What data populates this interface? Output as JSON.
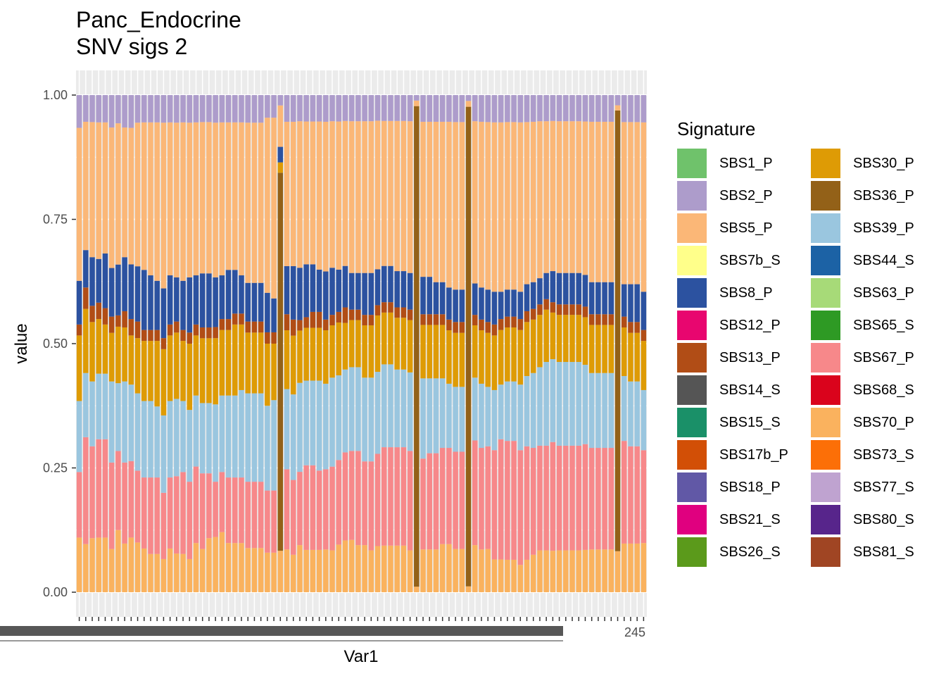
{
  "chart_data": {
    "type": "bar",
    "stacked": true,
    "title": "Panc_Endocrine",
    "subtitle": "SNV sigs 2",
    "xlabel": "Var1",
    "ylabel": "value",
    "ylim": [
      0,
      1
    ],
    "yticks": [
      "0.00",
      "0.25",
      "0.50",
      "0.75",
      "1.00"
    ],
    "xticks_visible_text": "245",
    "n_bars": 88,
    "grid": true,
    "background": "#EBEBEB",
    "legend_position": "right",
    "legend_title": "Signature",
    "signatures": [
      {
        "name": "SBS1_P",
        "color": "#6FC26B"
      },
      {
        "name": "SBS2_P",
        "color": "#AD9CCB"
      },
      {
        "name": "SBS5_P",
        "color": "#FBB777"
      },
      {
        "name": "SBS7b_S",
        "color": "#FFFF8A"
      },
      {
        "name": "SBS8_P",
        "color": "#2C52A0"
      },
      {
        "name": "SBS12_P",
        "color": "#E8066F"
      },
      {
        "name": "SBS13_P",
        "color": "#B14D16"
      },
      {
        "name": "SBS14_S",
        "color": "#555555"
      },
      {
        "name": "SBS15_S",
        "color": "#1A9068"
      },
      {
        "name": "SBS17b_P",
        "color": "#D24F06"
      },
      {
        "name": "SBS18_P",
        "color": "#6158A6"
      },
      {
        "name": "SBS21_S",
        "color": "#E0007F"
      },
      {
        "name": "SBS26_S",
        "color": "#5B9A1B"
      },
      {
        "name": "SBS30_P",
        "color": "#DE9B05"
      },
      {
        "name": "SBS36_P",
        "color": "#936118"
      },
      {
        "name": "SBS39_P",
        "color": "#9AC6DF"
      },
      {
        "name": "SBS44_S",
        "color": "#1C62A5"
      },
      {
        "name": "SBS63_P",
        "color": "#A7DA78"
      },
      {
        "name": "SBS65_S",
        "color": "#2E9A24"
      },
      {
        "name": "SBS67_P",
        "color": "#F7888A"
      },
      {
        "name": "SBS68_S",
        "color": "#DA031C"
      },
      {
        "name": "SBS70_P",
        "color": "#FAB25E"
      },
      {
        "name": "SBS73_S",
        "color": "#FC6F07"
      },
      {
        "name": "SBS77_S",
        "color": "#BFA3D0"
      },
      {
        "name": "SBS80_S",
        "color": "#57258B"
      },
      {
        "name": "SBS81_S",
        "color": "#A04523"
      }
    ],
    "series": [
      {
        "name": "SBS70_P",
        "values": [
          0.1,
          0.09,
          0.1,
          0.1,
          0.1,
          0.08,
          0.11,
          0.09,
          0.1,
          0.09,
          0.08,
          0.07,
          0.07,
          0.06,
          0.08,
          0.07,
          0.07,
          0.06,
          0.09,
          0.08,
          0.1,
          0.1,
          0.11,
          0.09,
          0.09,
          0.09,
          0.08,
          0.08,
          0.08,
          0.07,
          0.07,
          0.08,
          0.08,
          0.07,
          0.09,
          0.08,
          0.08,
          0.08,
          0.08,
          0.08,
          0.09,
          0.1,
          0.1,
          0.09,
          0.09,
          0.08,
          0.09,
          0.09,
          0.09,
          0.09,
          0.09,
          0.08,
          0.01,
          0.08,
          0.08,
          0.08,
          0.09,
          0.09,
          0.08,
          0.08,
          0.01,
          0.09,
          0.08,
          0.08,
          0.06,
          0.06,
          0.06,
          0.06,
          0.05,
          0.06,
          0.07,
          0.08,
          0.08,
          0.08,
          0.08,
          0.08,
          0.08,
          0.08,
          0.08,
          0.08,
          0.08,
          0.08,
          0.08,
          0.08,
          0.09,
          0.09,
          0.09,
          0.09
        ]
      },
      {
        "name": "SBS36_P",
        "values": [
          0,
          0,
          0,
          0,
          0,
          0,
          0,
          0,
          0,
          0,
          0,
          0,
          0,
          0,
          0,
          0,
          0,
          0,
          0,
          0,
          0,
          0,
          0,
          0,
          0,
          0,
          0,
          0,
          0,
          0,
          0,
          0.73,
          0,
          0,
          0,
          0,
          0,
          0,
          0,
          0,
          0,
          0,
          0,
          0,
          0,
          0,
          0,
          0,
          0,
          0,
          0,
          0,
          0.87,
          0,
          0,
          0,
          0,
          0,
          0,
          0,
          0.82,
          0,
          0,
          0,
          0,
          0,
          0,
          0,
          0,
          0,
          0,
          0,
          0,
          0,
          0,
          0,
          0,
          0,
          0,
          0,
          0,
          0,
          0,
          0.86,
          0,
          0,
          0,
          0
        ]
      },
      {
        "name": "SBS67_P",
        "values": [
          0.12,
          0.2,
          0.17,
          0.18,
          0.18,
          0.16,
          0.14,
          0.15,
          0.14,
          0.13,
          0.13,
          0.14,
          0.14,
          0.12,
          0.13,
          0.14,
          0.15,
          0.14,
          0.14,
          0.14,
          0.12,
          0.1,
          0.11,
          0.12,
          0.12,
          0.12,
          0.12,
          0.12,
          0.12,
          0.11,
          0.11,
          0.0,
          0.15,
          0.14,
          0.14,
          0.16,
          0.16,
          0.15,
          0.15,
          0.16,
          0.16,
          0.17,
          0.17,
          0.18,
          0.16,
          0.17,
          0.18,
          0.19,
          0.19,
          0.19,
          0.19,
          0.19,
          0.0,
          0.17,
          0.18,
          0.18,
          0.18,
          0.18,
          0.18,
          0.18,
          0.0,
          0.2,
          0.19,
          0.19,
          0.2,
          0.22,
          0.22,
          0.22,
          0.21,
          0.21,
          0.2,
          0.2,
          0.2,
          0.21,
          0.2,
          0.2,
          0.2,
          0.2,
          0.2,
          0.19,
          0.19,
          0.19,
          0.19,
          0.0,
          0.19,
          0.18,
          0.18,
          0.17
        ]
      },
      {
        "name": "SBS39_P",
        "values": [
          0.13,
          0.12,
          0.12,
          0.12,
          0.12,
          0.15,
          0.12,
          0.15,
          0.14,
          0.14,
          0.14,
          0.14,
          0.13,
          0.14,
          0.14,
          0.14,
          0.13,
          0.13,
          0.13,
          0.13,
          0.13,
          0.14,
          0.14,
          0.15,
          0.15,
          0.16,
          0.16,
          0.16,
          0.16,
          0.15,
          0.16,
          0.0,
          0.15,
          0.16,
          0.17,
          0.16,
          0.16,
          0.17,
          0.16,
          0.17,
          0.16,
          0.16,
          0.16,
          0.16,
          0.16,
          0.16,
          0.16,
          0.16,
          0.16,
          0.15,
          0.15,
          0.15,
          0.0,
          0.15,
          0.14,
          0.14,
          0.13,
          0.12,
          0.12,
          0.12,
          0.0,
          0.12,
          0.12,
          0.11,
          0.11,
          0.1,
          0.11,
          0.11,
          0.12,
          0.13,
          0.14,
          0.15,
          0.16,
          0.16,
          0.16,
          0.16,
          0.16,
          0.16,
          0.15,
          0.14,
          0.14,
          0.14,
          0.14,
          0.0,
          0.12,
          0.12,
          0.12,
          0.11
        ]
      },
      {
        "name": "SBS30_P",
        "values": [
          0.12,
          0.12,
          0.11,
          0.1,
          0.09,
          0.09,
          0.1,
          0.1,
          0.09,
          0.1,
          0.11,
          0.11,
          0.12,
          0.12,
          0.12,
          0.12,
          0.11,
          0.12,
          0.11,
          0.12,
          0.12,
          0.12,
          0.12,
          0.12,
          0.13,
          0.12,
          0.11,
          0.11,
          0.11,
          0.11,
          0.1,
          0.02,
          0.11,
          0.11,
          0.1,
          0.1,
          0.1,
          0.1,
          0.1,
          0.1,
          0.1,
          0.09,
          0.09,
          0.09,
          0.1,
          0.1,
          0.11,
          0.1,
          0.1,
          0.1,
          0.1,
          0.1,
          0.0,
          0.1,
          0.1,
          0.1,
          0.1,
          0.1,
          0.1,
          0.1,
          0.0,
          0.1,
          0.1,
          0.1,
          0.1,
          0.1,
          0.1,
          0.1,
          0.1,
          0.1,
          0.1,
          0.1,
          0.1,
          0.09,
          0.09,
          0.09,
          0.09,
          0.09,
          0.09,
          0.09,
          0.09,
          0.09,
          0.09,
          0.0,
          0.09,
          0.09,
          0.09,
          0.09
        ]
      },
      {
        "name": "SBS13_P",
        "values": [
          0.02,
          0.04,
          0.03,
          0.03,
          0.03,
          0.03,
          0.02,
          0.03,
          0.03,
          0.03,
          0.02,
          0.02,
          0.02,
          0.02,
          0.02,
          0.02,
          0.02,
          0.02,
          0.02,
          0.02,
          0.02,
          0.02,
          0.02,
          0.02,
          0.02,
          0.02,
          0.02,
          0.02,
          0.02,
          0.02,
          0.02,
          0.0,
          0.03,
          0.03,
          0.02,
          0.02,
          0.03,
          0.03,
          0.02,
          0.02,
          0.02,
          0.03,
          0.02,
          0.02,
          0.02,
          0.02,
          0.02,
          0.02,
          0.02,
          0.02,
          0.02,
          0.02,
          0.0,
          0.02,
          0.02,
          0.02,
          0.02,
          0.02,
          0.02,
          0.02,
          0.0,
          0.02,
          0.02,
          0.02,
          0.02,
          0.02,
          0.02,
          0.02,
          0.02,
          0.02,
          0.02,
          0.02,
          0.02,
          0.02,
          0.02,
          0.02,
          0.02,
          0.02,
          0.02,
          0.02,
          0.02,
          0.02,
          0.02,
          0.0,
          0.02,
          0.02,
          0.02,
          0.02
        ]
      },
      {
        "name": "SBS8_P",
        "values": [
          0.08,
          0.07,
          0.09,
          0.08,
          0.1,
          0.09,
          0.09,
          0.1,
          0.1,
          0.1,
          0.11,
          0.1,
          0.09,
          0.09,
          0.09,
          0.08,
          0.09,
          0.1,
          0.09,
          0.1,
          0.1,
          0.09,
          0.08,
          0.09,
          0.08,
          0.07,
          0.07,
          0.07,
          0.07,
          0.07,
          0.06,
          0.03,
          0.09,
          0.1,
          0.1,
          0.1,
          0.09,
          0.08,
          0.09,
          0.09,
          0.08,
          0.08,
          0.07,
          0.07,
          0.08,
          0.08,
          0.07,
          0.07,
          0.07,
          0.07,
          0.07,
          0.07,
          0.0,
          0.07,
          0.07,
          0.06,
          0.06,
          0.06,
          0.06,
          0.06,
          0.0,
          0.06,
          0.06,
          0.06,
          0.06,
          0.05,
          0.05,
          0.05,
          0.05,
          0.05,
          0.05,
          0.05,
          0.05,
          0.06,
          0.06,
          0.06,
          0.06,
          0.06,
          0.06,
          0.06,
          0.06,
          0.06,
          0.06,
          0.0,
          0.06,
          0.07,
          0.07,
          0.07
        ]
      },
      {
        "name": "SBS5_P",
        "values": [
          0.28,
          0.24,
          0.25,
          0.25,
          0.24,
          0.26,
          0.25,
          0.24,
          0.25,
          0.26,
          0.27,
          0.28,
          0.29,
          0.3,
          0.28,
          0.28,
          0.29,
          0.28,
          0.28,
          0.28,
          0.28,
          0.28,
          0.28,
          0.27,
          0.27,
          0.28,
          0.29,
          0.29,
          0.29,
          0.31,
          0.32,
          0.08,
          0.27,
          0.27,
          0.28,
          0.27,
          0.27,
          0.28,
          0.28,
          0.28,
          0.28,
          0.28,
          0.29,
          0.29,
          0.29,
          0.29,
          0.29,
          0.28,
          0.28,
          0.29,
          0.29,
          0.29,
          0.01,
          0.29,
          0.29,
          0.3,
          0.3,
          0.31,
          0.31,
          0.31,
          0.01,
          0.31,
          0.31,
          0.31,
          0.31,
          0.31,
          0.31,
          0.31,
          0.31,
          0.3,
          0.3,
          0.3,
          0.29,
          0.29,
          0.29,
          0.29,
          0.29,
          0.29,
          0.29,
          0.3,
          0.3,
          0.3,
          0.3,
          0.01,
          0.3,
          0.3,
          0.3,
          0.31
        ]
      },
      {
        "name": "SBS2_P",
        "values": [
          0.06,
          0.05,
          0.05,
          0.05,
          0.05,
          0.06,
          0.05,
          0.06,
          0.06,
          0.05,
          0.05,
          0.05,
          0.05,
          0.05,
          0.05,
          0.05,
          0.05,
          0.05,
          0.05,
          0.05,
          0.05,
          0.05,
          0.05,
          0.05,
          0.05,
          0.05,
          0.05,
          0.05,
          0.05,
          0.04,
          0.04,
          0.02,
          0.05,
          0.05,
          0.05,
          0.05,
          0.05,
          0.05,
          0.05,
          0.05,
          0.05,
          0.05,
          0.05,
          0.05,
          0.05,
          0.05,
          0.05,
          0.05,
          0.05,
          0.05,
          0.05,
          0.05,
          0.01,
          0.05,
          0.05,
          0.05,
          0.05,
          0.05,
          0.05,
          0.05,
          0.01,
          0.05,
          0.05,
          0.05,
          0.05,
          0.05,
          0.05,
          0.05,
          0.05,
          0.05,
          0.05,
          0.05,
          0.05,
          0.05,
          0.05,
          0.05,
          0.05,
          0.05,
          0.05,
          0.05,
          0.05,
          0.05,
          0.05,
          0.02,
          0.05,
          0.05,
          0.05,
          0.05
        ]
      }
    ]
  }
}
